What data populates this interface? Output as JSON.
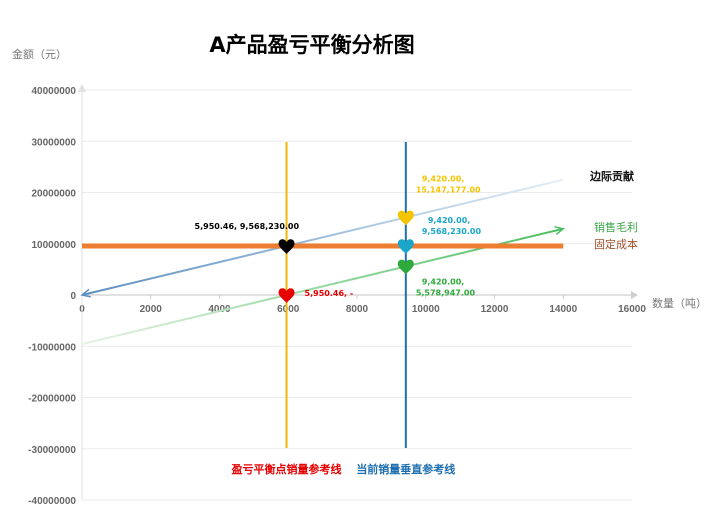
{
  "chart_data": {
    "type": "line",
    "title": "A产品盈亏平衡分析图",
    "xlabel": "数量（吨）",
    "ylabel": "金额（元）",
    "xlim": [
      0,
      16000
    ],
    "ylim": [
      -40000000,
      40000000
    ],
    "x_ticks": [
      "0",
      "2000",
      "4000",
      "6000",
      "8000",
      "10000",
      "12000",
      "14000",
      "16000"
    ],
    "y_ticks": [
      "40000000",
      "30000000",
      "20000000",
      "10000000",
      "0",
      "-10000000",
      "-20000000",
      "-30000000",
      "-40000000"
    ],
    "grid": true,
    "series": [
      {
        "name": "边际贡献",
        "x": [
          0,
          14000
        ],
        "y": [
          0,
          22500000
        ],
        "color": "#9fc3de"
      },
      {
        "name": "销售毛利",
        "x": [
          0,
          14000
        ],
        "y": [
          -9568230,
          12930000
        ],
        "color": "#8fd18a"
      },
      {
        "name": "固定成本",
        "x": [
          0,
          14000
        ],
        "y": [
          9568230,
          9568230
        ],
        "color": "#ed7d31"
      }
    ],
    "reference_lines": [
      {
        "name": "盈亏平衡点销量参考线",
        "x": 5950.46,
        "color": "#f2b705"
      },
      {
        "name": "当前销量垂直参考线",
        "x": 9420,
        "color": "#1f6fb0"
      }
    ],
    "points": [
      {
        "x": 5950.46,
        "y": 9568230,
        "label_line1": "5,950.46, 9,568,230.00",
        "label_line2": "",
        "color": "#000000"
      },
      {
        "x": 5950.46,
        "y": 0,
        "label_line1": "5,950.46, -",
        "label_line2": "",
        "color": "#e60000"
      },
      {
        "x": 9420,
        "y": 15147177,
        "label_line1": "9,420.00,",
        "label_line2": "15,147,177.00",
        "color": "#f5c400"
      },
      {
        "x": 9420,
        "y": 9568230,
        "label_line1": "9,420.00,",
        "label_line2": "9,568,230.00",
        "color": "#1aa6c8"
      },
      {
        "x": 9420,
        "y": 5578947,
        "label_line1": "9,420.00,",
        "label_line2": "5,578,947.00",
        "color": "#2eaa3a"
      }
    ]
  }
}
